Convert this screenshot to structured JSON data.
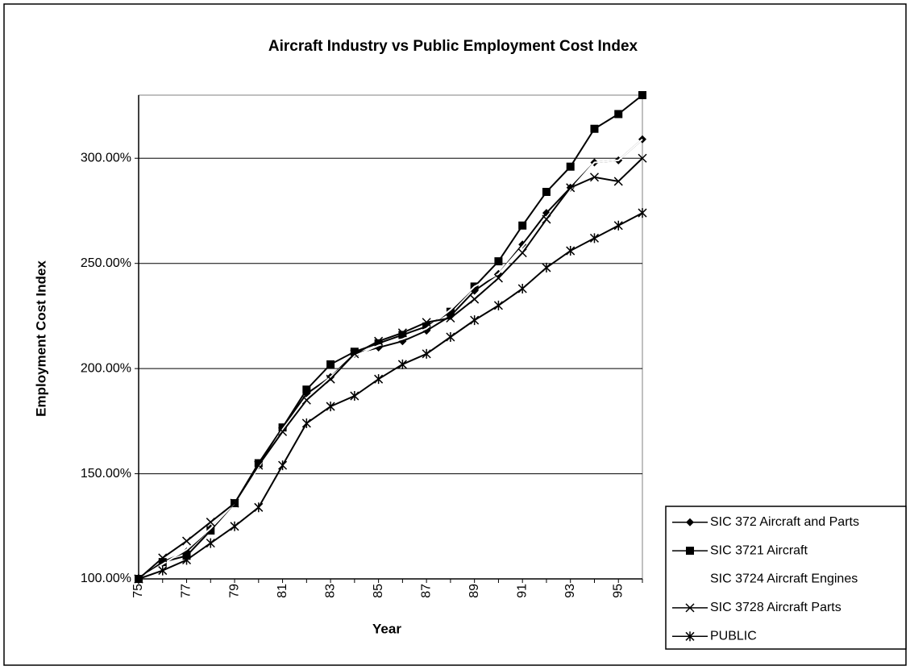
{
  "chart_data": {
    "type": "line",
    "title": "Aircraft Industry vs Public Employment Cost Index",
    "ylabel": "Employment Cost Index",
    "xlabel": "Year",
    "categories": [
      "75",
      null,
      "77",
      null,
      "79",
      null,
      "81",
      null,
      "83",
      null,
      "85",
      null,
      "87",
      null,
      "89",
      null,
      "91",
      null,
      "93",
      null,
      "95",
      null
    ],
    "ylim": [
      100,
      330
    ],
    "yticks": [
      {
        "value": 100,
        "label": "100.00%"
      },
      {
        "value": 150,
        "label": "150.00%"
      },
      {
        "value": 200,
        "label": "200.00%"
      },
      {
        "value": 250,
        "label": "250.00%"
      },
      {
        "value": 300,
        "label": "300.00%"
      }
    ],
    "grid": true,
    "legend": "lower right",
    "series": [
      {
        "name": "SIC 372 Aircraft and Parts",
        "color": "#000000",
        "marker": "diamond",
        "values": [
          100,
          108,
          113,
          124,
          136,
          154,
          172,
          188,
          196,
          207,
          210,
          213,
          218,
          225,
          237,
          245,
          259,
          274,
          286,
          298,
          299,
          309
        ]
      },
      {
        "name": "SIC 3721 Aircraft",
        "color": "#000000",
        "marker": "square",
        "values": [
          100,
          108,
          111,
          123,
          136,
          155,
          172,
          190,
          202,
          208,
          212,
          216,
          220,
          227,
          239,
          251,
          268,
          284,
          296,
          314,
          321,
          330
        ]
      },
      {
        "name": "SIC 3724 Aircraft Engines",
        "color": "#ffffff",
        "marker": "none",
        "values": [
          100,
          107,
          114,
          124,
          136,
          153,
          171,
          186,
          196,
          206,
          211,
          214,
          219,
          228,
          239,
          245,
          258,
          272,
          285,
          298,
          299,
          309
        ]
      },
      {
        "name": "SIC 3728 Aircraft Parts",
        "color": "#000000",
        "marker": "x",
        "values": [
          100,
          110,
          118,
          127,
          136,
          154,
          170,
          185,
          195,
          207,
          213,
          217,
          222,
          224,
          233,
          243,
          255,
          271,
          286,
          291,
          289,
          300
        ]
      },
      {
        "name": "PUBLIC",
        "color": "#000000",
        "marker": "star",
        "values": [
          100,
          104,
          109,
          117,
          125,
          134,
          154,
          174,
          182,
          187,
          195,
          202,
          207,
          215,
          223,
          230,
          238,
          248,
          256,
          262,
          268,
          274
        ]
      }
    ]
  }
}
